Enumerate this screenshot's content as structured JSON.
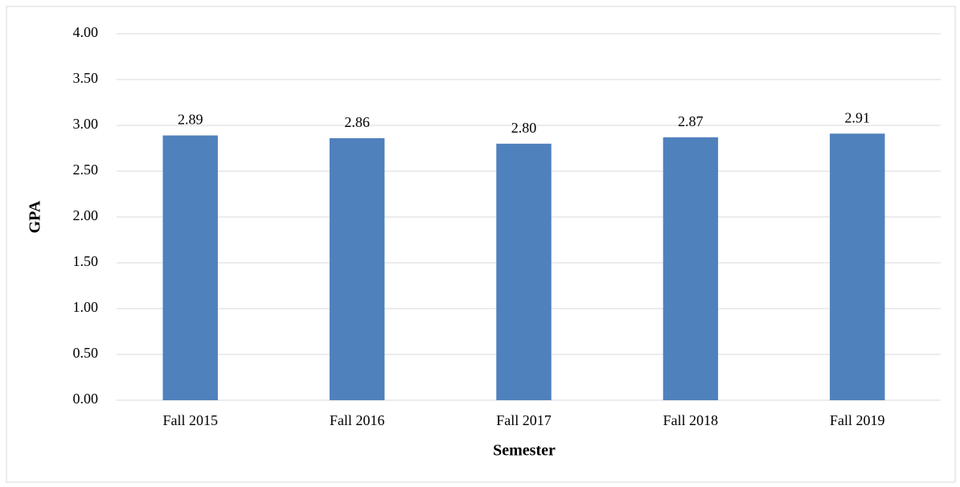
{
  "chart_data": {
    "type": "bar",
    "x_label": "Semester",
    "y_label": "GPA",
    "categories": [
      "Fall 2015",
      "Fall 2016",
      "Fall 2017",
      "Fall 2018",
      "Fall 2019"
    ],
    "values": [
      2.89,
      2.86,
      2.8,
      2.87,
      2.91
    ],
    "value_labels": [
      "2.89",
      "2.86",
      "2.80",
      "2.87",
      "2.91"
    ],
    "color": "#4f81bd",
    "ylim": [
      0,
      4
    ],
    "yticks": [
      {
        "value": 0,
        "label": "0.00"
      },
      {
        "value": 0.5,
        "label": "0.50"
      },
      {
        "value": 1,
        "label": "1.00"
      },
      {
        "value": 1.5,
        "label": "1.50"
      },
      {
        "value": 2,
        "label": "2.00"
      },
      {
        "value": 2.5,
        "label": "2.50"
      },
      {
        "value": 3,
        "label": "3.00"
      },
      {
        "value": 3.5,
        "label": "3.50"
      },
      {
        "value": 4,
        "label": "4.00"
      }
    ],
    "grid": true
  }
}
